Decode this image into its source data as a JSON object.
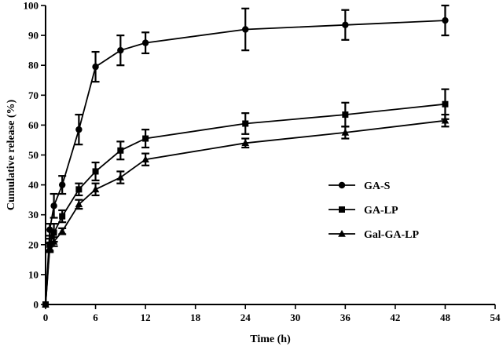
{
  "chart_data": {
    "type": "line",
    "title": "",
    "xlabel": "Time (h)",
    "ylabel": "Cumulative release (%)",
    "xlim": [
      0,
      54
    ],
    "ylim": [
      0,
      100
    ],
    "xticks": [
      0,
      6,
      12,
      18,
      24,
      30,
      36,
      42,
      48,
      54
    ],
    "yticks": [
      0,
      10,
      20,
      30,
      40,
      50,
      60,
      70,
      80,
      90,
      100
    ],
    "legend_position": "center-right",
    "grid": false,
    "series": [
      {
        "name": "GA-S",
        "marker": "circle",
        "x": [
          0,
          0.5,
          1,
          2,
          4,
          6,
          9,
          12,
          24,
          36,
          48
        ],
        "y": [
          0,
          25,
          33,
          40,
          58.5,
          79.5,
          85,
          87.5,
          92,
          93.5,
          95
        ],
        "err": [
          0,
          2,
          4,
          3,
          5,
          5,
          5,
          3.5,
          7,
          5,
          5
        ]
      },
      {
        "name": "GA-LP",
        "marker": "square",
        "x": [
          0,
          0.5,
          1,
          2,
          4,
          6,
          9,
          12,
          24,
          36,
          48
        ],
        "y": [
          0,
          20,
          24,
          29.5,
          38.5,
          44.5,
          51.5,
          55.5,
          60.5,
          63.5,
          67
        ],
        "err": [
          0,
          2,
          3,
          2,
          2,
          3,
          3,
          3,
          3.5,
          4,
          5
        ]
      },
      {
        "name": "Gal-GA-LP",
        "marker": "triangle",
        "x": [
          0,
          0.5,
          1,
          2,
          4,
          6,
          9,
          12,
          24,
          36,
          48
        ],
        "y": [
          0,
          19,
          21,
          24.5,
          33.5,
          38.5,
          42.5,
          48.5,
          54,
          57.5,
          61.5
        ],
        "err": [
          0,
          1.5,
          1.5,
          1,
          1.5,
          2,
          2,
          2,
          1.5,
          2,
          2
        ]
      }
    ]
  }
}
